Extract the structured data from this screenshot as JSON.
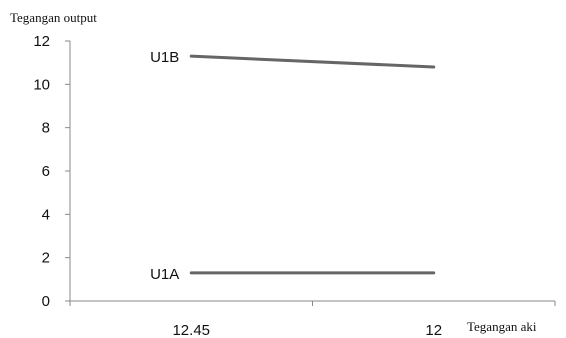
{
  "chart_data": {
    "type": "line",
    "ylabel": "Tegangan output",
    "xlabel": "Tegangan aki",
    "categories": [
      "12.45",
      "12"
    ],
    "yticks": [
      "0",
      "2",
      "4",
      "6",
      "8",
      "10",
      "12"
    ],
    "ylim": [
      0,
      12
    ],
    "grid": false,
    "series": [
      {
        "name": "U1B",
        "values": [
          11.3,
          10.8
        ]
      },
      {
        "name": "U1A",
        "values": [
          1.3,
          1.3
        ]
      }
    ],
    "line_color": "#666666",
    "axis_color": "#888888",
    "text_color": "#111111"
  }
}
